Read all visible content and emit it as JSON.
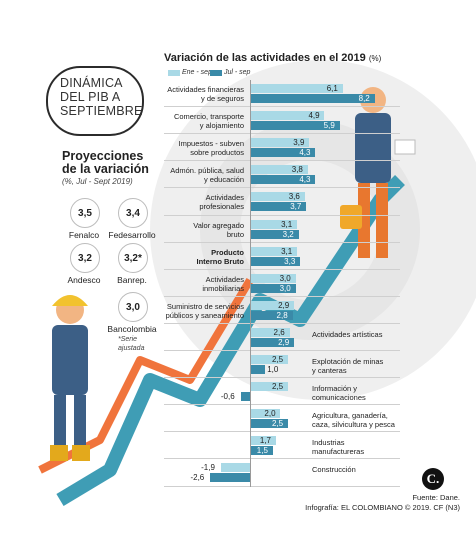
{
  "infographic": {
    "main_title": "DINÁMICA DEL PIB A SEPTIEMBRE",
    "projections_title": "Proyecciones de la variación",
    "projections_subtitle": "(%, Jul - Sept 2019)",
    "projections": [
      {
        "value": "3,5",
        "name": "Fenalco"
      },
      {
        "value": "3,4",
        "name": "Fedesarrollo"
      },
      {
        "value": "3,2",
        "name": "Andesco"
      },
      {
        "value": "3,2*",
        "name": "Banrep."
      },
      {
        "value": "3,0",
        "name": "Bancolombia"
      }
    ],
    "projections_note": "*Serie ajustada",
    "source": "Fuente: Dane.",
    "credit": "Infografía: EL COLOMBIANO © 2019. CF (N3)",
    "logo_text": "C."
  },
  "chart_data": {
    "type": "bar",
    "orientation": "horizontal",
    "title": "Variación de las actividades en el 2019",
    "title_unit": "(%)",
    "legend_placement": "top",
    "categories": [
      "Actividades financieras\ny de seguros",
      "Comercio, transporte\ny alojamiento",
      "Impuestos - subven\nsobre productos",
      "Admón. pública, salud\ny educación",
      "Actividades\nprofesionales",
      "Valor agregado\nbruto",
      "Producto\nInterno Bruto",
      "Actividades\ninmobiliarias",
      "Suministro de servicios\npúblicos y saneamiento",
      "Actividades artísticas",
      "Explotación de minas\ny canteras",
      "Información y\ncomunicaciones",
      "Agricultura, ganadería,\ncaza, silvicultura y pesca",
      "Industrias\nmanufactureras",
      "Construcción"
    ],
    "series": [
      {
        "name": "Ene - sep",
        "color": "#a9d9e6",
        "values": [
          6.1,
          4.9,
          3.9,
          3.8,
          3.6,
          3.1,
          3.1,
          3.0,
          2.9,
          2.6,
          2.5,
          2.5,
          2.0,
          1.7,
          -1.9
        ],
        "labels": [
          "6,1",
          "4,9",
          "3,9",
          "3,8",
          "3,6",
          "3,1",
          "3,1",
          "3,0",
          "2,9",
          "2,6",
          "2,5",
          "2,5",
          "2,0",
          "1,7",
          "-1,9"
        ]
      },
      {
        "name": "Jul - sep",
        "color": "#3a8aa8",
        "values": [
          8.2,
          5.9,
          4.3,
          4.3,
          3.7,
          3.2,
          3.3,
          3.0,
          2.8,
          2.9,
          1.0,
          -0.6,
          2.5,
          1.5,
          -2.6
        ],
        "labels": [
          "8,2",
          "5,9",
          "4,3",
          "4,3",
          "3,7",
          "3,2",
          "3,3",
          "3,0",
          "2,8",
          "2,9",
          "1,0",
          "-0,6",
          "2,5",
          "1,5",
          "-2,6"
        ]
      }
    ],
    "bold_categories": [
      6
    ],
    "xlim": [
      -3,
      8.5
    ],
    "grid": false
  }
}
